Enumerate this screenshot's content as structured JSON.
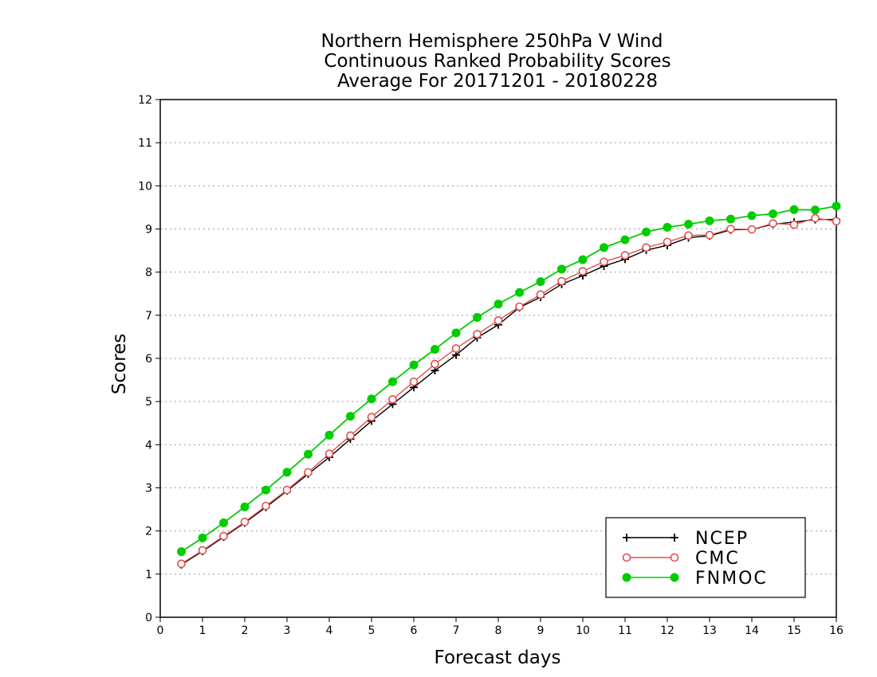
{
  "chart_data": {
    "type": "line",
    "title": [
      "Northern Hemisphere 250hPa V Wind",
      "Continuous Ranked Probability Scores",
      "Average For 20171201 - 20180228"
    ],
    "xlabel": "Forecast days",
    "ylabel": "Scores",
    "xlim": [
      0,
      16
    ],
    "ylim": [
      0,
      12
    ],
    "xticks": [
      "0",
      "1",
      "2",
      "3",
      "4",
      "5",
      "6",
      "7",
      "8",
      "9",
      "10",
      "11",
      "12",
      "13",
      "14",
      "15",
      "16"
    ],
    "yticks": [
      "0",
      "1",
      "2",
      "3",
      "4",
      "5",
      "6",
      "7",
      "8",
      "9",
      "10",
      "11",
      "12"
    ],
    "grid": "horizontal dotted",
    "legend_position": "bottom-right",
    "x": [
      0.5,
      1,
      1.5,
      2,
      2.5,
      3,
      3.5,
      4,
      4.5,
      5,
      5.5,
      6,
      6.5,
      7,
      7.5,
      8,
      8.5,
      9,
      9.5,
      10,
      10.5,
      11,
      11.5,
      12,
      12.5,
      13,
      13.5,
      14,
      14.5,
      15,
      15.5,
      16
    ],
    "series": [
      {
        "name": "NCEP",
        "color": "#000000",
        "marker": "plus",
        "values": [
          1.22,
          1.53,
          1.86,
          2.19,
          2.55,
          2.93,
          3.32,
          3.71,
          4.13,
          4.55,
          4.94,
          5.33,
          5.72,
          6.08,
          6.48,
          6.78,
          7.18,
          7.42,
          7.72,
          7.92,
          8.14,
          8.3,
          8.51,
          8.62,
          8.8,
          8.84,
          8.98,
          8.99,
          9.11,
          9.16,
          9.22,
          9.22
        ]
      },
      {
        "name": "CMC",
        "color": "#e05050",
        "marker": "open-circle",
        "values": [
          1.24,
          1.55,
          1.88,
          2.21,
          2.58,
          2.95,
          3.36,
          3.79,
          4.21,
          4.64,
          5.05,
          5.46,
          5.87,
          6.23,
          6.56,
          6.88,
          7.2,
          7.48,
          7.79,
          8.02,
          8.24,
          8.39,
          8.57,
          8.7,
          8.85,
          8.86,
          9.0,
          8.99,
          9.13,
          9.1,
          9.25,
          9.18
        ]
      },
      {
        "name": "FNMOC",
        "color": "#00cc00",
        "marker": "filled-circle",
        "values": [
          1.52,
          1.84,
          2.19,
          2.56,
          2.95,
          3.36,
          3.78,
          4.22,
          4.66,
          5.06,
          5.46,
          5.85,
          6.21,
          6.59,
          6.95,
          7.26,
          7.53,
          7.78,
          8.07,
          8.29,
          8.57,
          8.75,
          8.93,
          9.04,
          9.11,
          9.19,
          9.23,
          9.31,
          9.35,
          9.45,
          9.44,
          9.53
        ]
      }
    ]
  }
}
